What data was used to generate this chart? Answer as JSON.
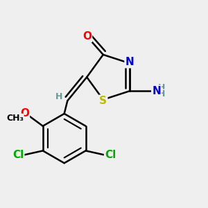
{
  "bg_color": "#efefef",
  "bond_color": "#000000",
  "bond_width": 1.8,
  "dbo": 0.018,
  "atom_colors": {
    "O": "#ff0000",
    "N": "#0000cc",
    "S": "#bbbb00",
    "Cl": "#00aa00",
    "H": "#669999",
    "C": "#000000"
  },
  "font_size": 11,
  "small_font_size": 9,
  "figsize": [
    3.0,
    3.0
  ],
  "dpi": 100
}
